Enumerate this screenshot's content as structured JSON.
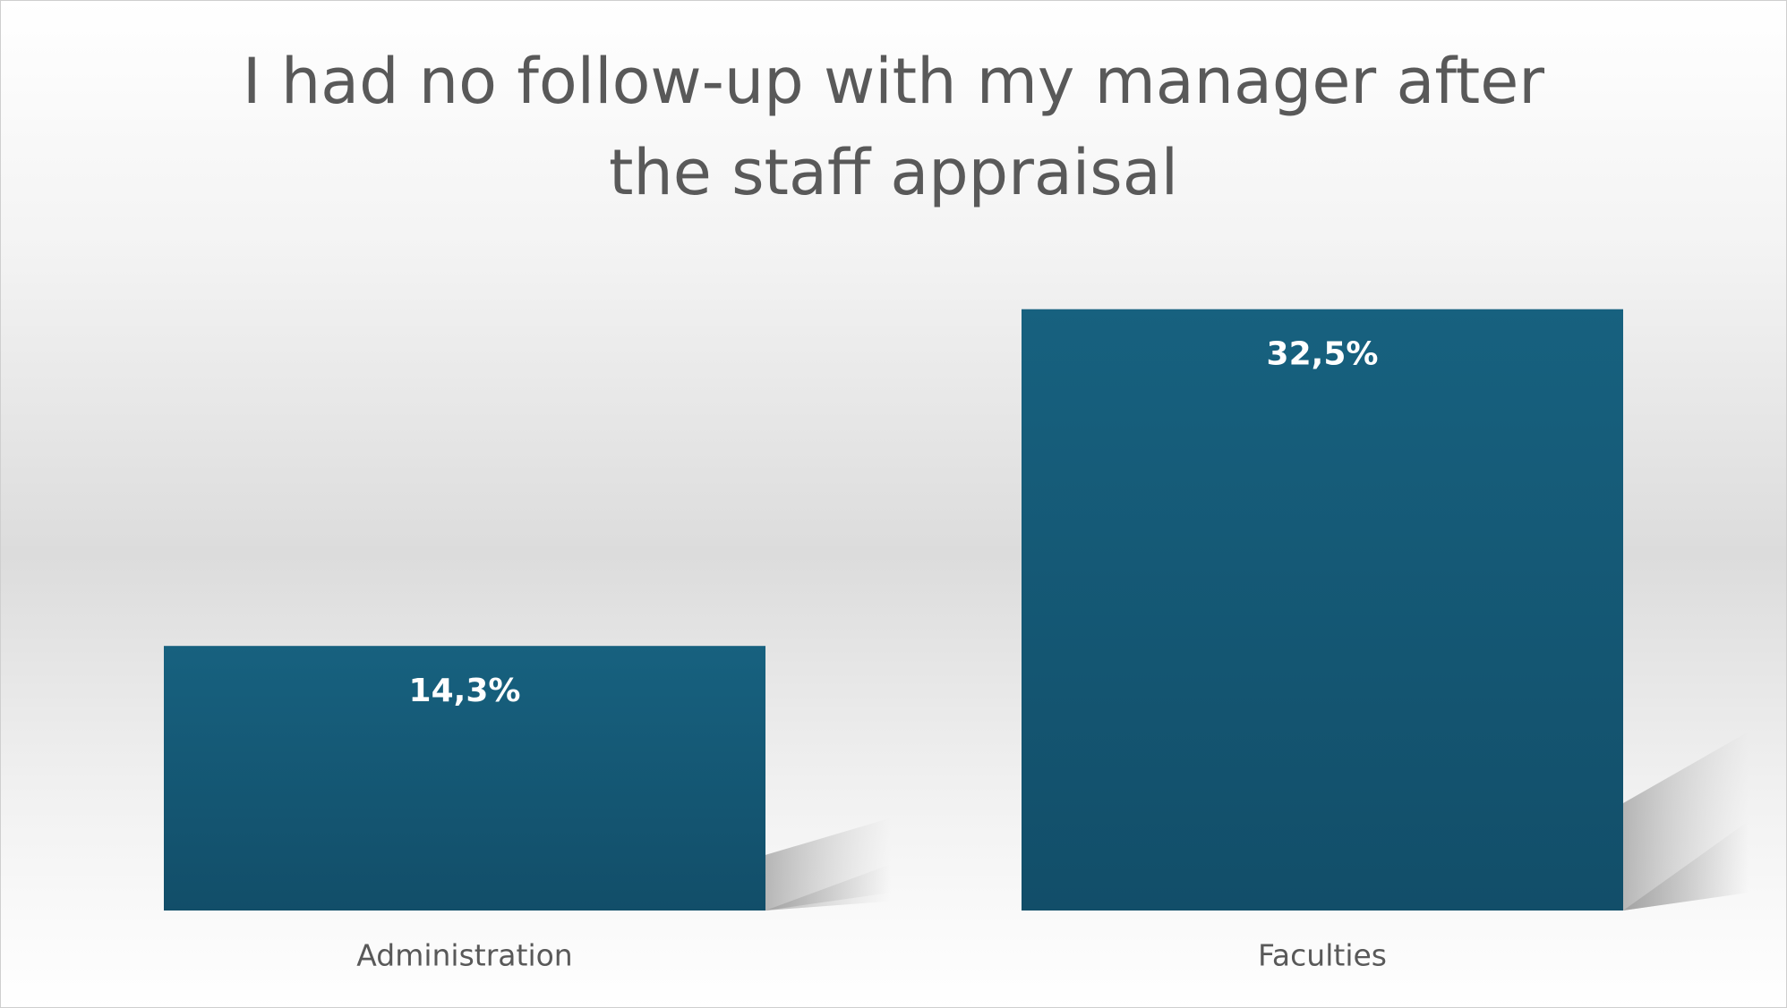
{
  "chart_data": {
    "type": "bar",
    "title": "I had no follow-up with my manager after the staff appraisal",
    "categories": [
      "Administration",
      "Faculties"
    ],
    "values": [
      14.3,
      32.5
    ],
    "value_labels": [
      "14,3%",
      "32,5%"
    ],
    "color": "#165d7c",
    "ylim": [
      0,
      35
    ]
  }
}
